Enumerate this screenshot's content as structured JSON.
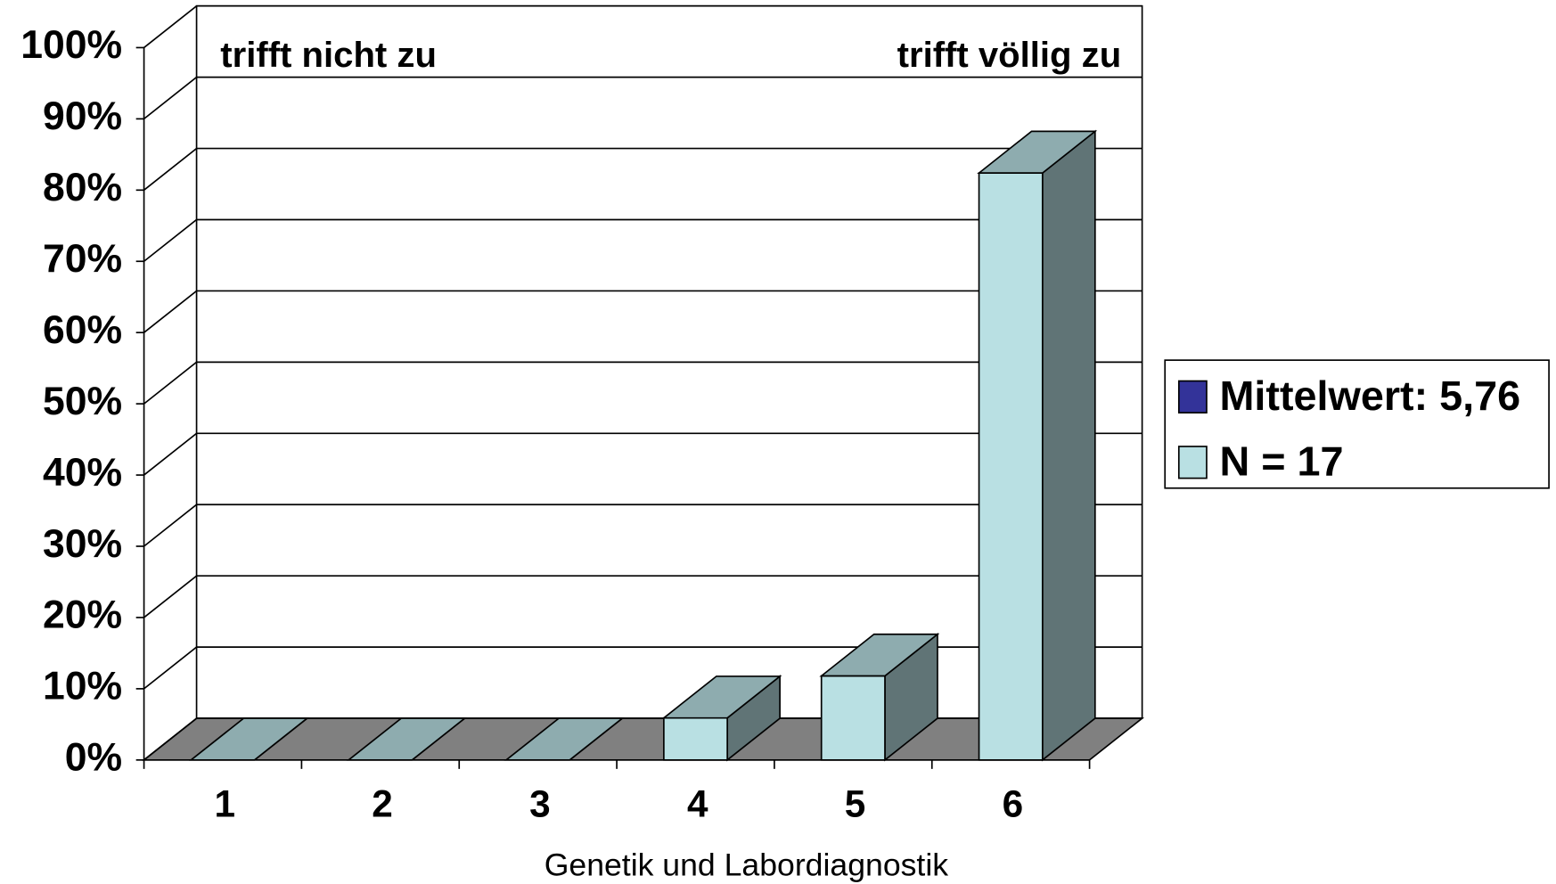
{
  "chart_data": {
    "type": "bar3d",
    "annotations": [
      "trifft nicht zu",
      "trifft völlig zu"
    ],
    "x_label": "Genetik und Labordiagnostik",
    "categories": [
      "1",
      "2",
      "3",
      "4",
      "5",
      "6"
    ],
    "values": [
      0,
      0,
      0,
      5.9,
      11.8,
      82.4
    ],
    "color": "#b9e0e3",
    "ylim": [
      0,
      100
    ],
    "yticks": [
      {
        "value": 0,
        "label": "0%"
      },
      {
        "value": 10,
        "label": "10%"
      },
      {
        "value": 20,
        "label": "20%"
      },
      {
        "value": 30,
        "label": "30%"
      },
      {
        "value": 40,
        "label": "40%"
      },
      {
        "value": 50,
        "label": "50%"
      },
      {
        "value": 60,
        "label": "60%"
      },
      {
        "value": 70,
        "label": "70%"
      },
      {
        "value": 80,
        "label": "80%"
      },
      {
        "value": 90,
        "label": "90%"
      },
      {
        "value": 100,
        "label": "100%"
      }
    ],
    "grid": true,
    "legend": [
      {
        "label": "Mittelwert: 5,76",
        "color": "#333399"
      },
      {
        "label": "N = 17",
        "color": "#b9e0e3"
      }
    ]
  }
}
